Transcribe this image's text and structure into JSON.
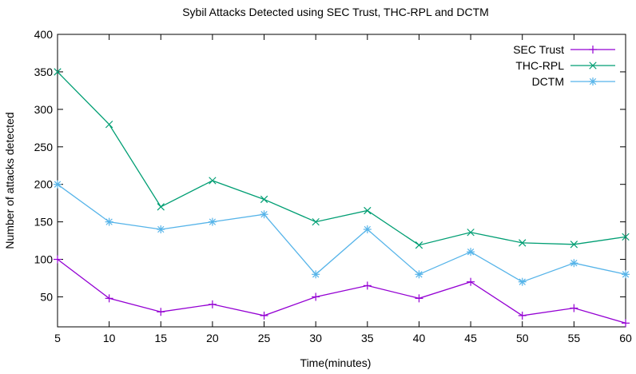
{
  "chart_data": {
    "type": "line",
    "title": "Sybil Attacks Detected using SEC Trust, THC-RPL and DCTM",
    "xlabel": "Time(minutes)",
    "ylabel": "Number of attacks detected",
    "x": [
      5,
      10,
      15,
      20,
      25,
      30,
      35,
      40,
      45,
      50,
      55,
      60
    ],
    "xlim": [
      5,
      60
    ],
    "ylim": [
      10,
      400
    ],
    "xticks": [
      5,
      10,
      15,
      20,
      25,
      30,
      35,
      40,
      45,
      50,
      55,
      60
    ],
    "yticks": [
      50,
      100,
      150,
      200,
      250,
      300,
      350,
      400
    ],
    "grid": false,
    "legend_position": "top-right",
    "series": [
      {
        "name": "SEC Trust",
        "color": "#9400d3",
        "marker": "plus",
        "values": [
          100,
          48,
          30,
          40,
          25,
          50,
          65,
          48,
          70,
          25,
          35,
          15
        ]
      },
      {
        "name": "THC-RPL",
        "color": "#009e73",
        "marker": "cross",
        "values": [
          350,
          280,
          170,
          205,
          180,
          150,
          165,
          119,
          136,
          122,
          120,
          130
        ]
      },
      {
        "name": "DCTM",
        "color": "#56b4e9",
        "marker": "star",
        "values": [
          200,
          150,
          140,
          150,
          160,
          80,
          140,
          80,
          110,
          70,
          95,
          80
        ]
      }
    ]
  }
}
